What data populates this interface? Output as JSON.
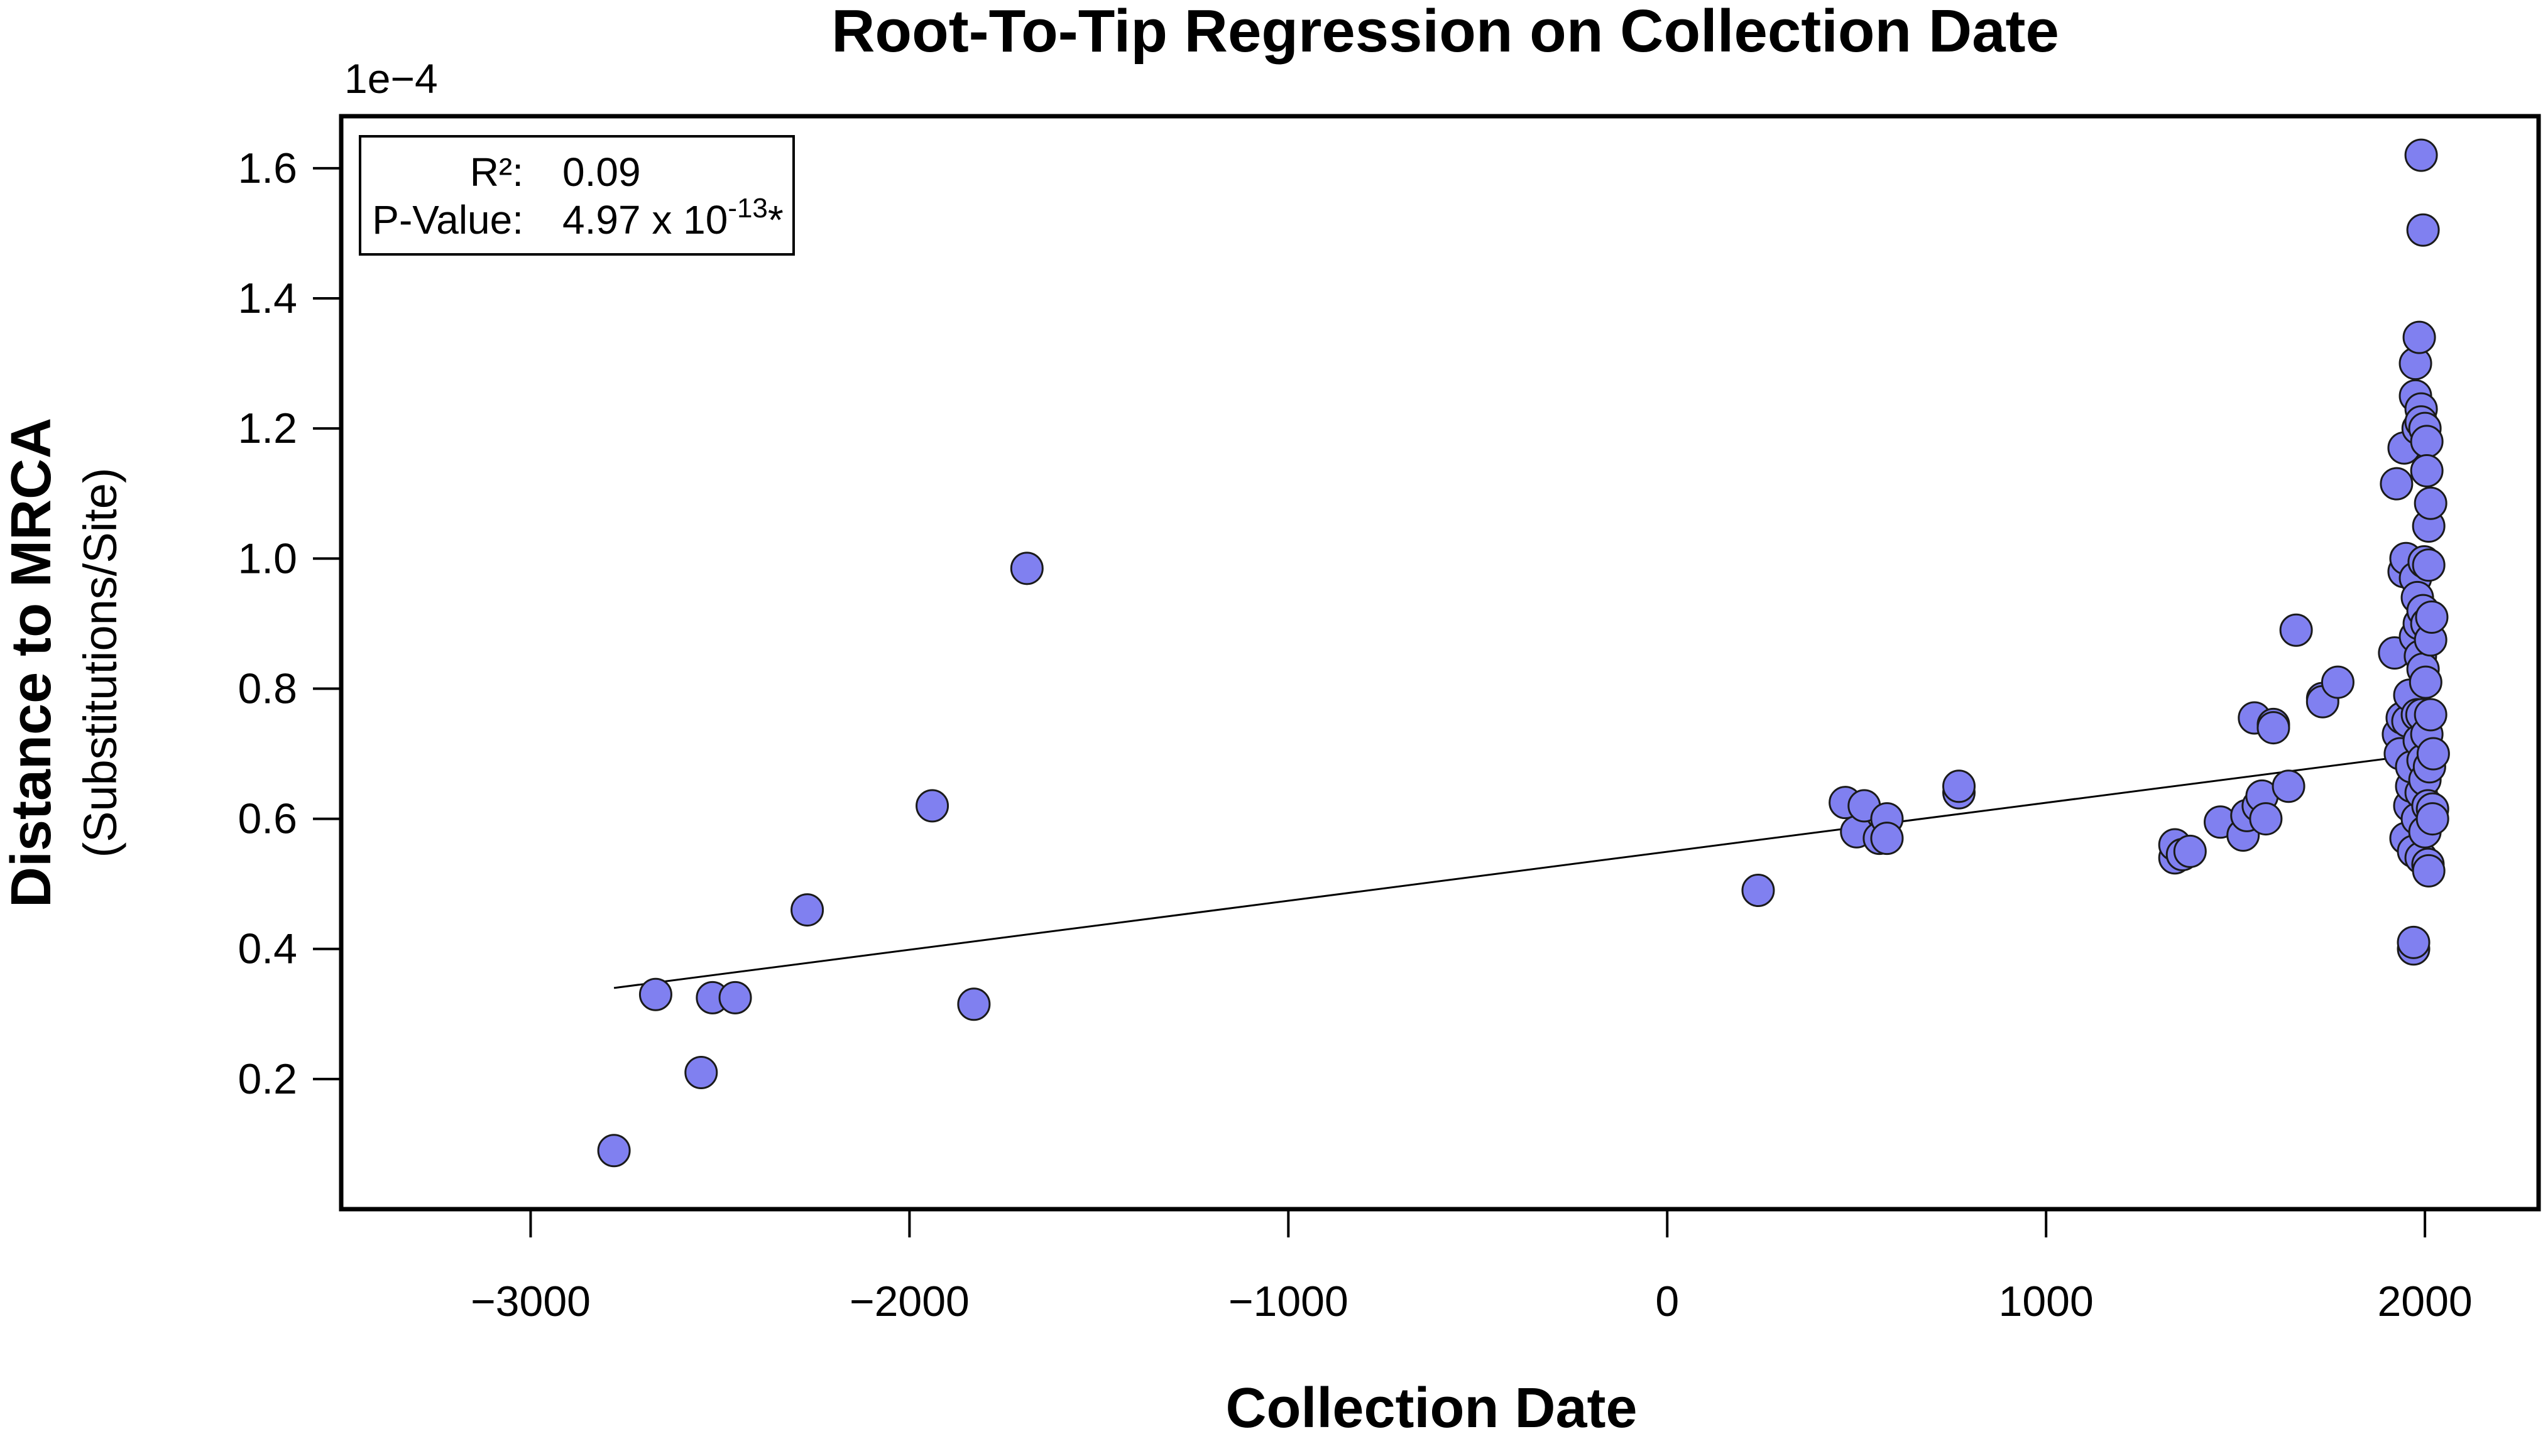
{
  "chart_data": {
    "type": "scatter",
    "title": "Root-To-Tip Regression on Collection Date",
    "xlabel": "Collection Date",
    "ylabel": "Distance to MRCA",
    "ylabel_sub": "(Substitutions/Site)",
    "y_multiplier": "1e−4",
    "xlim": [
      -3500,
      2300
    ],
    "ylim": [
      0.0,
      1.68
    ],
    "x_ticks": [
      -3000,
      -2000,
      -1000,
      0,
      1000,
      2000
    ],
    "x_tick_labels": [
      "−3000",
      "−2000",
      "−1000",
      "0",
      "1000",
      "2000"
    ],
    "y_ticks": [
      0.2,
      0.4,
      0.6,
      0.8,
      1.0,
      1.2,
      1.4,
      1.6
    ],
    "y_tick_labels": [
      "0.2",
      "0.4",
      "0.6",
      "0.8",
      "1.0",
      "1.2",
      "1.4",
      "1.6"
    ],
    "point_color": "#8080f0",
    "point_edge_color": "#1a1a1a",
    "regression_line": {
      "x": [
        -2780,
        2000
      ],
      "y": [
        0.34,
        0.7
      ]
    },
    "stats": {
      "r2_label": "R²:",
      "r2_value": "0.09",
      "p_label": "P-Value:",
      "p_value": "4.97 x 10",
      "p_exponent": "-13",
      "p_suffix": "*"
    },
    "points": [
      [
        -2780,
        0.09
      ],
      [
        -2670,
        0.33
      ],
      [
        -2550,
        0.21
      ],
      [
        -2520,
        0.325
      ],
      [
        -2460,
        0.325
      ],
      [
        -2270,
        0.46
      ],
      [
        -1940,
        0.62
      ],
      [
        -1830,
        0.315
      ],
      [
        -1690,
        0.985
      ],
      [
        240,
        0.49
      ],
      [
        470,
        0.625
      ],
      [
        500,
        0.58
      ],
      [
        520,
        0.62
      ],
      [
        560,
        0.57
      ],
      [
        580,
        0.6
      ],
      [
        580,
        0.57
      ],
      [
        770,
        0.64
      ],
      [
        770,
        0.65
      ],
      [
        1340,
        0.54
      ],
      [
        1340,
        0.56
      ],
      [
        1360,
        0.545
      ],
      [
        1380,
        0.55
      ],
      [
        1460,
        0.595
      ],
      [
        1520,
        0.575
      ],
      [
        1530,
        0.605
      ],
      [
        1550,
        0.755
      ],
      [
        1560,
        0.62
      ],
      [
        1570,
        0.635
      ],
      [
        1580,
        0.6
      ],
      [
        1600,
        0.745
      ],
      [
        1600,
        0.74
      ],
      [
        1640,
        0.65
      ],
      [
        1660,
        0.89
      ],
      [
        1730,
        0.785
      ],
      [
        1730,
        0.78
      ],
      [
        1770,
        0.81
      ],
      [
        1920,
        0.855
      ],
      [
        1925,
        1.115
      ],
      [
        1930,
        0.73
      ],
      [
        1935,
        0.7
      ],
      [
        1940,
        0.755
      ],
      [
        1945,
        0.98
      ],
      [
        1945,
        1.17
      ],
      [
        1950,
        1.0
      ],
      [
        1950,
        0.57
      ],
      [
        1955,
        0.75
      ],
      [
        1960,
        0.79
      ],
      [
        1960,
        0.62
      ],
      [
        1965,
        0.65
      ],
      [
        1965,
        0.68
      ],
      [
        1970,
        0.4
      ],
      [
        1970,
        0.41
      ],
      [
        1970,
        0.55
      ],
      [
        1975,
        0.88
      ],
      [
        1975,
        1.25
      ],
      [
        1975,
        1.3
      ],
      [
        1975,
        0.97
      ],
      [
        1980,
        0.76
      ],
      [
        1980,
        0.6
      ],
      [
        1980,
        0.94
      ],
      [
        1982,
        1.2
      ],
      [
        1985,
        1.34
      ],
      [
        1985,
        0.9
      ],
      [
        1985,
        0.72
      ],
      [
        1988,
        0.85
      ],
      [
        1990,
        1.62
      ],
      [
        1990,
        1.23
      ],
      [
        1990,
        1.21
      ],
      [
        1990,
        0.64
      ],
      [
        1990,
        0.54
      ],
      [
        1992,
        0.76
      ],
      [
        1995,
        1.505
      ],
      [
        1995,
        0.92
      ],
      [
        1995,
        0.83
      ],
      [
        1995,
        0.69
      ],
      [
        1998,
        0.995
      ],
      [
        2000,
        1.2
      ],
      [
        2000,
        0.58
      ],
      [
        2000,
        0.66
      ],
      [
        2002,
        0.81
      ],
      [
        2005,
        1.18
      ],
      [
        2005,
        1.135
      ],
      [
        2005,
        0.9
      ],
      [
        2005,
        0.73
      ],
      [
        2008,
        0.53
      ],
      [
        2008,
        0.62
      ],
      [
        2010,
        1.05
      ],
      [
        2010,
        0.99
      ],
      [
        2010,
        0.52
      ],
      [
        2012,
        0.68
      ],
      [
        2015,
        1.085
      ],
      [
        2015,
        0.76
      ],
      [
        2015,
        0.875
      ],
      [
        2018,
        0.91
      ],
      [
        2020,
        0.615
      ],
      [
        2020,
        0.6
      ],
      [
        2022,
        0.7
      ]
    ]
  }
}
